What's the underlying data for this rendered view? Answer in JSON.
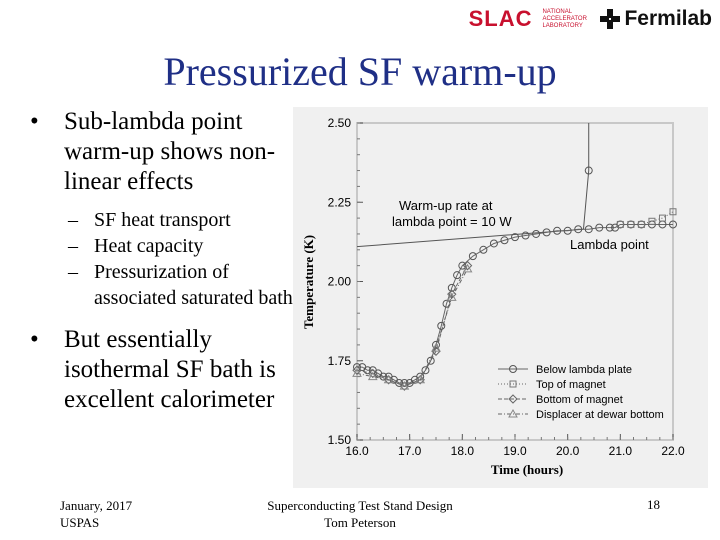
{
  "logos": {
    "slac": "SLAC",
    "slac_sub": "NATIONAL ACCELERATOR LABORATORY",
    "fermilab": "Fermilab"
  },
  "slide": {
    "title": "Pressurized SF warm-up",
    "bullets": [
      {
        "text": "Sub-lambda point warm-up shows non-linear effects",
        "subs": [
          "SF heat transport",
          "Heat capacity",
          "Pressurization of associated saturated bath"
        ]
      },
      {
        "text": "But essentially isothermal SF bath is excellent calorimeter",
        "subs": []
      }
    ],
    "bullet_char": "•",
    "sub_char": "–"
  },
  "footer": {
    "date": "January, 2017",
    "org": "USPAS",
    "course": "Superconducting Test Stand Design",
    "author": "Tom Peterson",
    "page": "18"
  },
  "chart_data": {
    "type": "scatter",
    "xlabel": "Time (hours)",
    "ylabel": "Temperature (K)",
    "xlim": [
      16.0,
      22.0
    ],
    "ylim": [
      1.5,
      2.5
    ],
    "xticks": [
      "16.0",
      "17.0",
      "18.0",
      "19.0",
      "20.0",
      "21.0",
      "22.0"
    ],
    "yticks": [
      "1.50",
      "1.75",
      "2.00",
      "2.25",
      "2.50"
    ],
    "annotations": {
      "warmup_line1": "Warm-up rate at",
      "warmup_line2": "lambda point = 10 W",
      "lambda": "Lambda point"
    },
    "legend_position": "bottom-right",
    "series": [
      {
        "name": "Below lambda plate",
        "marker": "circle-line",
        "x": [
          16.0,
          16.1,
          16.2,
          16.3,
          16.4,
          16.5,
          16.6,
          16.7,
          16.8,
          16.9,
          17.0,
          17.1,
          17.2,
          17.3,
          17.4,
          17.5,
          17.6,
          17.7,
          17.8,
          17.9,
          18.0,
          18.2,
          18.4,
          18.6,
          18.8,
          19.0,
          19.2,
          19.4,
          19.6,
          19.8,
          20.0,
          20.2,
          20.4,
          20.6,
          20.8,
          20.9,
          21.0,
          21.2,
          21.4,
          21.6,
          21.8,
          22.0
        ],
        "y": [
          1.73,
          1.73,
          1.72,
          1.72,
          1.71,
          1.7,
          1.7,
          1.69,
          1.68,
          1.68,
          1.68,
          1.69,
          1.7,
          1.72,
          1.75,
          1.8,
          1.86,
          1.93,
          1.98,
          2.02,
          2.05,
          2.08,
          2.1,
          2.12,
          2.13,
          2.14,
          2.145,
          2.15,
          2.155,
          2.16,
          2.16,
          2.165,
          2.165,
          2.17,
          2.17,
          2.17,
          2.18,
          2.18,
          2.18,
          2.18,
          2.18,
          2.18
        ]
      },
      {
        "name": "Top of magnet",
        "marker": "square-dotted",
        "x": [
          21.0,
          21.2,
          21.4,
          21.6,
          21.8,
          22.0
        ],
        "y": [
          2.18,
          2.18,
          2.18,
          2.19,
          2.2,
          2.22
        ]
      },
      {
        "name": "Bottom of magnet",
        "marker": "diamond-dashed",
        "x": [
          16.0,
          16.3,
          16.6,
          16.9,
          17.2,
          17.5,
          17.8,
          18.1
        ],
        "y": [
          1.72,
          1.71,
          1.69,
          1.67,
          1.69,
          1.78,
          1.96,
          2.05
        ]
      },
      {
        "name": "Displacer at dewar bottom",
        "marker": "triangle-dashdot",
        "x": [
          16.0,
          16.3,
          16.6,
          16.9,
          17.2,
          17.5,
          17.8,
          18.1
        ],
        "y": [
          1.71,
          1.7,
          1.69,
          1.67,
          1.69,
          1.79,
          1.95,
          2.04
        ]
      }
    ],
    "lines": {
      "lambda_fit": {
        "x": [
          16.0,
          20.3
        ],
        "y": [
          2.11,
          2.165
        ]
      },
      "warmup_spike": {
        "x": [
          20.3,
          20.4,
          20.4
        ],
        "y": [
          2.165,
          2.35,
          2.5
        ]
      }
    }
  },
  "colors": {
    "title": "#1f2f86",
    "slac": "#c8102e",
    "chart_bg": "#f0f0f0",
    "frame": "#c8c8c8"
  }
}
